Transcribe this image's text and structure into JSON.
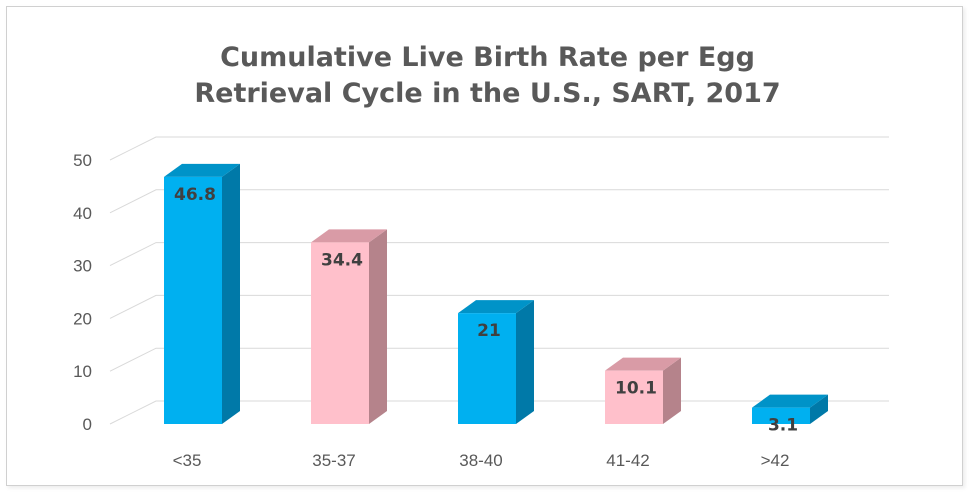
{
  "chart_data": {
    "type": "bar",
    "title_lines": [
      "Cumulative Live Birth Rate per Egg",
      "Retrieval Cycle in the U.S., SART, 2017"
    ],
    "categories": [
      "<35",
      "35-37",
      "38-40",
      "41-42",
      ">42"
    ],
    "values": [
      46.8,
      34.4,
      21,
      10.1,
      3.1
    ],
    "data_labels": [
      "46.8",
      "34.4",
      "21",
      "10.1",
      "3.1"
    ],
    "ylim": [
      0,
      50
    ],
    "yticks": [
      "0",
      "10",
      "20",
      "30",
      "40",
      "50"
    ],
    "grid": true,
    "legend": "none",
    "style": "3d-column",
    "colors": {
      "blue_front": "#00b0f0",
      "blue_side": "#0079a8",
      "blue_top": "#0093c8",
      "pink_front": "#ffc0cb",
      "pink_side": "#b5838b",
      "pink_top": "#d99ba6",
      "gridline": "#d9d9d9",
      "axis_text": "#595959",
      "label_text": "#404040"
    },
    "bar_color_pattern": [
      "blue",
      "pink",
      "blue",
      "pink",
      "blue"
    ]
  }
}
